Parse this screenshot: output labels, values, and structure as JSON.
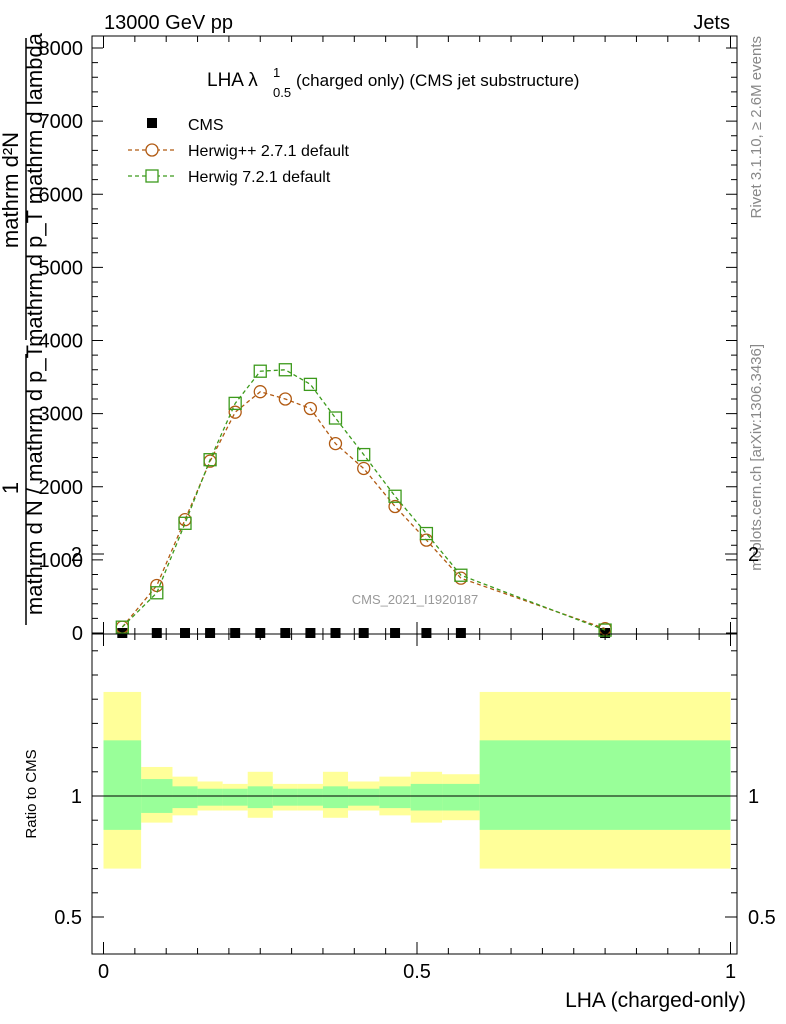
{
  "header": {
    "left": "13000 GeV pp",
    "right": "Jets"
  },
  "side": {
    "rivet": "Rivet 3.1.10, ≥ 2.6M events",
    "site": "mcplots.cern.ch [arXiv:1306.3436]"
  },
  "title": {
    "main": "LHA λ",
    "sup": "1",
    "sub": "0.5",
    "rest": " (charged only) (CMS jet substructure)"
  },
  "watermark": "CMS_2021_I1920187",
  "ylabel_main": {
    "lhs_top": "1",
    "lhs_bottom": "mathrm d N / mathrm d p_T",
    "rhs_top": "mathrm d²N",
    "rhs_bottom": "mathrm d p_T mathrm d lambda"
  },
  "ylabel_ratio": "Ratio to CMS",
  "xlabel": "LHA (charged-only)",
  "legend": [
    {
      "label": "CMS",
      "marker": "filled-square",
      "color": "#000000"
    },
    {
      "label": "Herwig++ 2.7.1 default",
      "marker": "open-circle",
      "color": "#b15a12"
    },
    {
      "label": "Herwig 7.2.1 default",
      "marker": "open-square",
      "color": "#3c9a1c"
    }
  ],
  "colors": {
    "herwigpp": "#b15a12",
    "herwig7": "#3c9a1c",
    "band_inner": "#99ff99",
    "band_outer": "#ffff99"
  },
  "chart_data": {
    "type": "line",
    "main": {
      "xlim": [
        0,
        1
      ],
      "ylim": [
        0,
        8200
      ],
      "y_ticks": [
        0,
        1000,
        2000,
        3000,
        4000,
        5000,
        6000,
        7000,
        8000
      ],
      "y_tick_labels": [
        "0",
        "1000",
        "2000",
        "3000",
        "4000",
        "5000",
        "6000",
        "7000",
        "8000"
      ],
      "x_ticks": [
        0,
        0.5,
        1
      ],
      "x_tick_labels": [
        "0",
        "0.5",
        "1"
      ],
      "series": [
        {
          "name": "CMS",
          "x": [
            0.03,
            0.085,
            0.13,
            0.17,
            0.21,
            0.25,
            0.29,
            0.33,
            0.37,
            0.415,
            0.465,
            0.515,
            0.57,
            0.8
          ],
          "values": [
            0,
            0,
            0,
            0,
            0,
            0,
            0,
            0,
            0,
            0,
            0,
            0,
            0,
            0
          ]
        },
        {
          "name": "Herwig++ 2.7.1 default",
          "x": [
            0.03,
            0.085,
            0.13,
            0.17,
            0.21,
            0.25,
            0.29,
            0.33,
            0.37,
            0.415,
            0.465,
            0.515,
            0.57,
            0.8
          ],
          "values": [
            80,
            650,
            1550,
            2350,
            3020,
            3300,
            3200,
            3070,
            2590,
            2250,
            1730,
            1270,
            750,
            60
          ]
        },
        {
          "name": "Herwig 7.2.1 default",
          "x": [
            0.03,
            0.085,
            0.13,
            0.17,
            0.21,
            0.25,
            0.29,
            0.33,
            0.37,
            0.415,
            0.465,
            0.515,
            0.57,
            0.8
          ],
          "values": [
            80,
            550,
            1500,
            2370,
            3140,
            3580,
            3600,
            3400,
            2940,
            2440,
            1870,
            1360,
            790,
            40
          ]
        }
      ]
    },
    "ratio": {
      "ylim": [
        0.4,
        2.3
      ],
      "y_ticks": [
        0.5,
        1,
        2
      ],
      "y_tick_labels": [
        "0.5",
        "1",
        "2"
      ],
      "bins": [
        {
          "x0": 0.0,
          "x1": 0.06,
          "inner": [
            0.86,
            1.23
          ],
          "outer": [
            0.7,
            1.43
          ]
        },
        {
          "x0": 0.06,
          "x1": 0.11,
          "inner": [
            0.93,
            1.07
          ],
          "outer": [
            0.89,
            1.12
          ]
        },
        {
          "x0": 0.11,
          "x1": 0.15,
          "inner": [
            0.95,
            1.04
          ],
          "outer": [
            0.92,
            1.08
          ]
        },
        {
          "x0": 0.15,
          "x1": 0.19,
          "inner": [
            0.96,
            1.03
          ],
          "outer": [
            0.94,
            1.06
          ]
        },
        {
          "x0": 0.19,
          "x1": 0.23,
          "inner": [
            0.96,
            1.03
          ],
          "outer": [
            0.94,
            1.05
          ]
        },
        {
          "x0": 0.23,
          "x1": 0.27,
          "inner": [
            0.95,
            1.04
          ],
          "outer": [
            0.91,
            1.1
          ]
        },
        {
          "x0": 0.27,
          "x1": 0.31,
          "inner": [
            0.96,
            1.03
          ],
          "outer": [
            0.94,
            1.05
          ]
        },
        {
          "x0": 0.31,
          "x1": 0.35,
          "inner": [
            0.96,
            1.03
          ],
          "outer": [
            0.94,
            1.05
          ]
        },
        {
          "x0": 0.35,
          "x1": 0.39,
          "inner": [
            0.95,
            1.04
          ],
          "outer": [
            0.91,
            1.1
          ]
        },
        {
          "x0": 0.39,
          "x1": 0.44,
          "inner": [
            0.96,
            1.03
          ],
          "outer": [
            0.94,
            1.06
          ]
        },
        {
          "x0": 0.44,
          "x1": 0.49,
          "inner": [
            0.95,
            1.04
          ],
          "outer": [
            0.92,
            1.08
          ]
        },
        {
          "x0": 0.49,
          "x1": 0.54,
          "inner": [
            0.94,
            1.05
          ],
          "outer": [
            0.89,
            1.1
          ]
        },
        {
          "x0": 0.54,
          "x1": 0.6,
          "inner": [
            0.94,
            1.05
          ],
          "outer": [
            0.9,
            1.09
          ]
        },
        {
          "x0": 0.6,
          "x1": 1.0,
          "inner": [
            0.86,
            1.23
          ],
          "outer": [
            0.7,
            1.43
          ]
        }
      ],
      "reference_line": 1
    }
  }
}
